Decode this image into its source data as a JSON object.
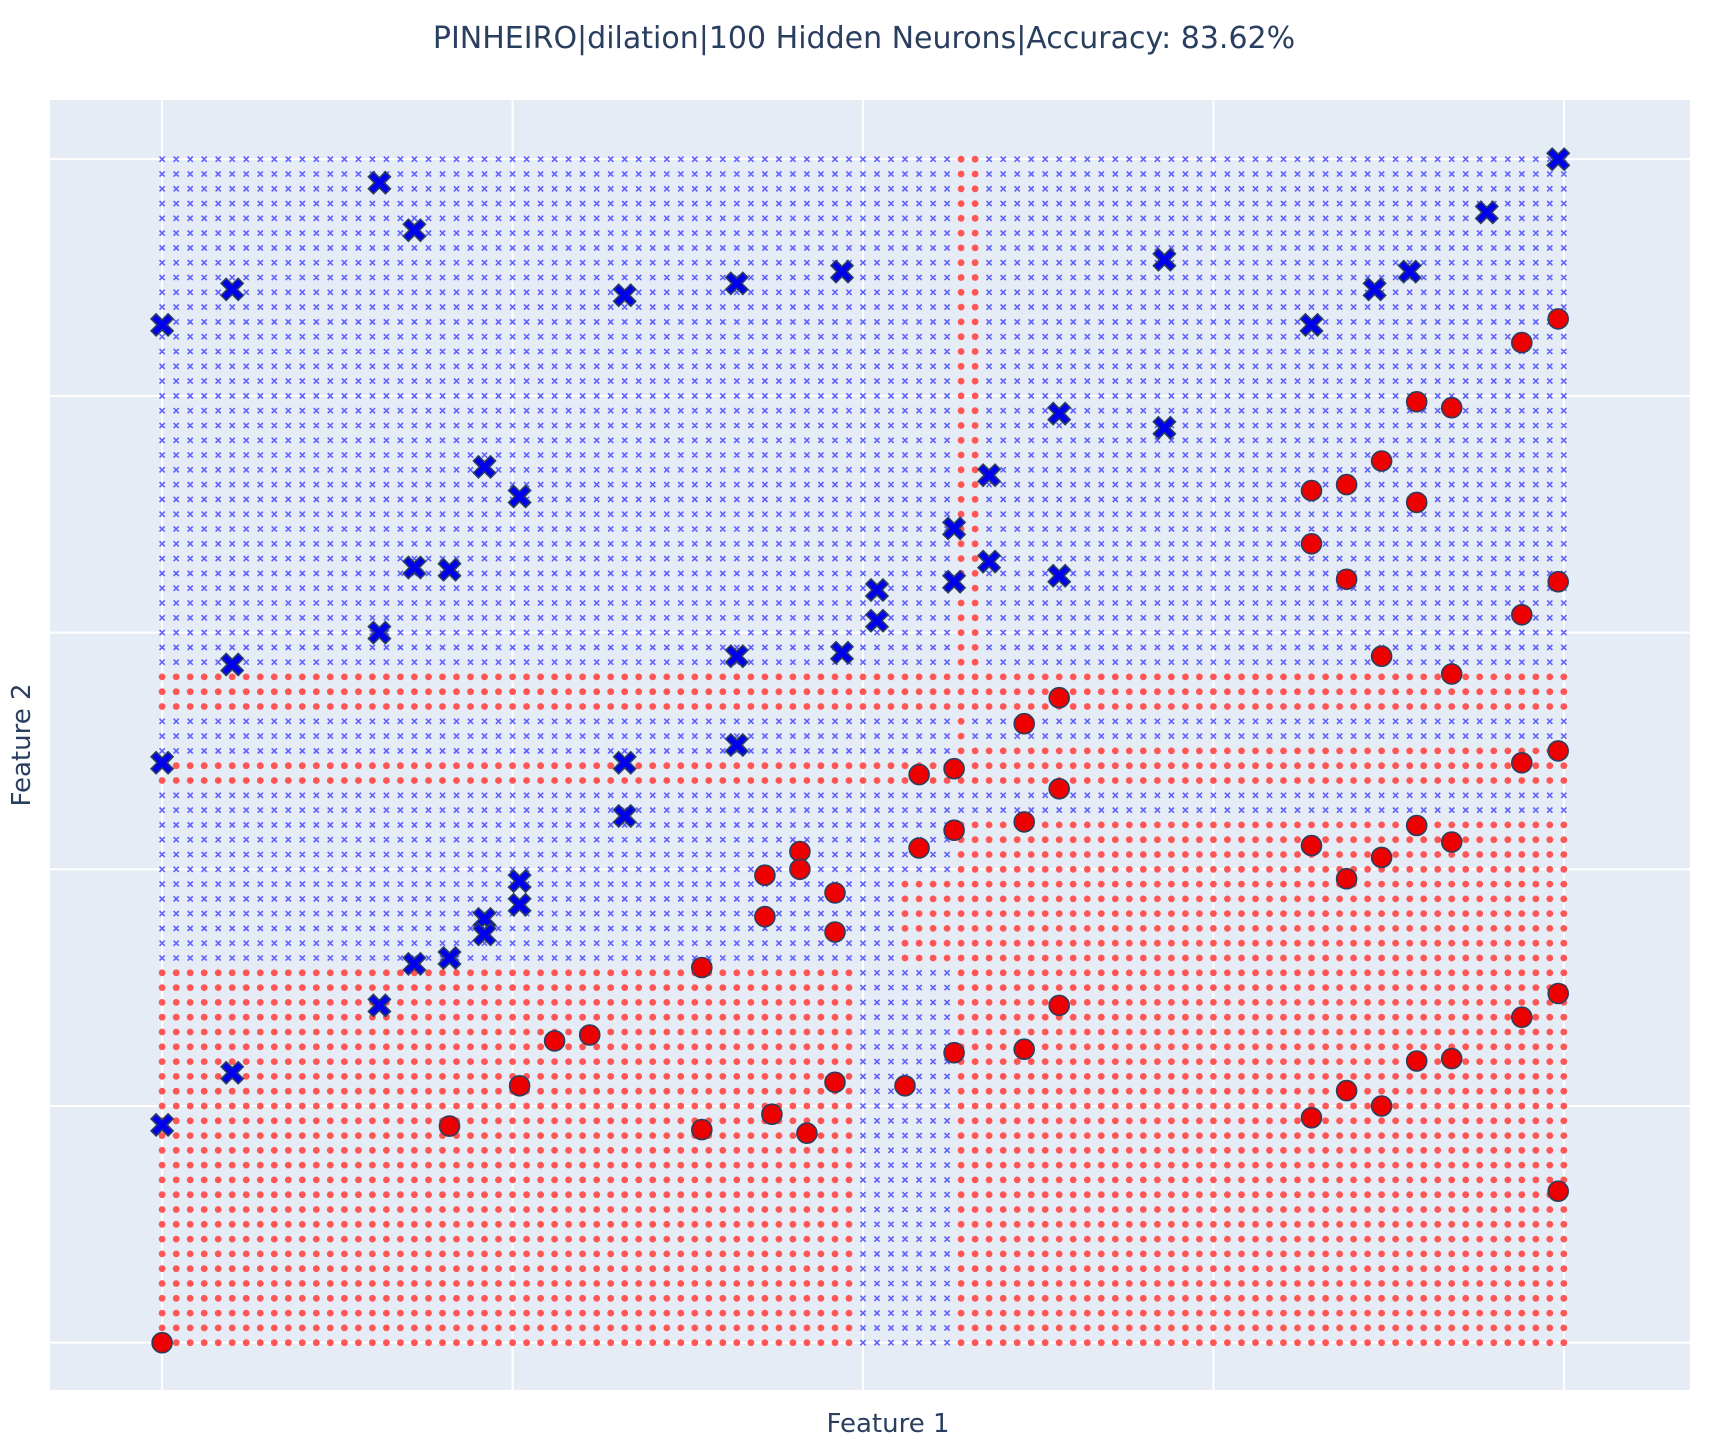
{
  "chart_data": {
    "type": "scatter",
    "title": "PINHEIRO|dilation|100 Hidden Neurons|Accuracy: 83.62%",
    "xlabel": "Feature 1",
    "ylabel": "Feature 2",
    "xlim": [
      -0.08,
      1.09
    ],
    "ylim": [
      -0.04,
      1.05
    ],
    "grid": true,
    "tick_labels_visible": false,
    "colors": {
      "background": "#e5ecf6",
      "grid": "#ffffff",
      "class_x": "#0000ee",
      "class_o": "#ee0000",
      "grid_x": "#6060ff",
      "grid_o": "#ff5555",
      "outline": "#2a3f5f"
    },
    "decision_grid": {
      "x_min": 0,
      "x_max": 1,
      "nx": 101,
      "y_min": 0,
      "y_max": 1,
      "ny": 81,
      "classes": [
        "x",
        "o"
      ],
      "regions": [
        {
          "class": "x",
          "x": [
            0.0,
            1.0
          ],
          "y": [
            0.57,
            1.0
          ]
        },
        {
          "class": "o",
          "x": [
            0.57,
            0.58
          ],
          "y": [
            0.57,
            1.0
          ]
        },
        {
          "class": "o",
          "x": [
            0.0,
            0.52
          ],
          "y": [
            0.54,
            0.57
          ]
        },
        {
          "class": "o",
          "x": [
            0.52,
            1.0
          ],
          "y": [
            0.49,
            0.57
          ]
        },
        {
          "class": "x",
          "x": [
            0.0,
            0.52
          ],
          "y": [
            0.5,
            0.535
          ]
        },
        {
          "class": "x",
          "x": [
            0.52,
            0.565
          ],
          "y": [
            0.5,
            0.535
          ]
        },
        {
          "class": "x",
          "x": [
            0.58,
            1.0
          ],
          "y": [
            0.51,
            0.525
          ]
        },
        {
          "class": "x",
          "x": [
            0.0,
            1.0
          ],
          "y": [
            0.44,
            0.47
          ]
        },
        {
          "class": "x",
          "x": [
            0.0,
            0.52
          ],
          "y": [
            0.32,
            0.44
          ]
        },
        {
          "class": "x",
          "x": [
            0.52,
            0.565
          ],
          "y": [
            0.39,
            0.44
          ]
        },
        {
          "class": "x",
          "x": [
            0.5,
            0.565
          ],
          "y": [
            0.0,
            0.32
          ]
        }
      ]
    },
    "series": [
      {
        "name": "",
        "class": "x",
        "marker": "x",
        "points": [
          [
            0.0,
            0.86
          ],
          [
            0.05,
            0.89
          ],
          [
            0.155,
            0.98
          ],
          [
            0.18,
            0.94
          ],
          [
            0.33,
            0.885
          ],
          [
            0.41,
            0.895
          ],
          [
            0.485,
            0.905
          ],
          [
            0.715,
            0.915
          ],
          [
            0.82,
            0.86
          ],
          [
            0.865,
            0.89
          ],
          [
            0.89,
            0.905
          ],
          [
            0.945,
            0.955
          ],
          [
            0.996,
            1.0
          ],
          [
            0.23,
            0.74
          ],
          [
            0.255,
            0.715
          ],
          [
            0.18,
            0.655
          ],
          [
            0.205,
            0.653
          ],
          [
            0.155,
            0.6
          ],
          [
            0.05,
            0.573
          ],
          [
            0.41,
            0.58
          ],
          [
            0.485,
            0.583
          ],
          [
            0.51,
            0.61
          ],
          [
            0.51,
            0.636
          ],
          [
            0.565,
            0.643
          ],
          [
            0.565,
            0.688
          ],
          [
            0.59,
            0.733
          ],
          [
            0.64,
            0.785
          ],
          [
            0.715,
            0.773
          ],
          [
            0.59,
            0.66
          ],
          [
            0.64,
            0.648
          ],
          [
            0.0,
            0.49
          ],
          [
            0.33,
            0.49
          ],
          [
            0.41,
            0.505
          ],
          [
            0.33,
            0.445
          ],
          [
            0.255,
            0.39
          ],
          [
            0.255,
            0.37
          ],
          [
            0.23,
            0.358
          ],
          [
            0.23,
            0.345
          ],
          [
            0.18,
            0.32
          ],
          [
            0.205,
            0.325
          ],
          [
            0.155,
            0.285
          ],
          [
            0.05,
            0.228
          ],
          [
            0.0,
            0.184
          ]
        ]
      },
      {
        "name": "",
        "class": "o",
        "marker": "circle",
        "points": [
          [
            0.996,
            0.865
          ],
          [
            0.97,
            0.845
          ],
          [
            0.92,
            0.79
          ],
          [
            0.895,
            0.795
          ],
          [
            0.87,
            0.745
          ],
          [
            0.82,
            0.72
          ],
          [
            0.845,
            0.725
          ],
          [
            0.895,
            0.71
          ],
          [
            0.82,
            0.675
          ],
          [
            0.845,
            0.645
          ],
          [
            0.996,
            0.643
          ],
          [
            0.97,
            0.615
          ],
          [
            0.87,
            0.58
          ],
          [
            0.92,
            0.565
          ],
          [
            0.64,
            0.545
          ],
          [
            0.615,
            0.523
          ],
          [
            0.64,
            0.468
          ],
          [
            0.615,
            0.44
          ],
          [
            0.565,
            0.485
          ],
          [
            0.54,
            0.48
          ],
          [
            0.565,
            0.433
          ],
          [
            0.54,
            0.418
          ],
          [
            0.97,
            0.49
          ],
          [
            0.996,
            0.5
          ],
          [
            0.92,
            0.423
          ],
          [
            0.895,
            0.437
          ],
          [
            0.82,
            0.42
          ],
          [
            0.845,
            0.392
          ],
          [
            0.87,
            0.41
          ],
          [
            0.455,
            0.415
          ],
          [
            0.43,
            0.395
          ],
          [
            0.455,
            0.4
          ],
          [
            0.48,
            0.38
          ],
          [
            0.43,
            0.36
          ],
          [
            0.48,
            0.347
          ],
          [
            0.385,
            0.317
          ],
          [
            0.28,
            0.255
          ],
          [
            0.305,
            0.26
          ],
          [
            0.255,
            0.217
          ],
          [
            0.205,
            0.183
          ],
          [
            0.385,
            0.18
          ],
          [
            0.435,
            0.193
          ],
          [
            0.46,
            0.177
          ],
          [
            0.48,
            0.22
          ],
          [
            0.53,
            0.217
          ],
          [
            0.565,
            0.245
          ],
          [
            0.615,
            0.248
          ],
          [
            0.64,
            0.285
          ],
          [
            0.996,
            0.295
          ],
          [
            0.97,
            0.275
          ],
          [
            0.92,
            0.24
          ],
          [
            0.895,
            0.238
          ],
          [
            0.82,
            0.19
          ],
          [
            0.845,
            0.213
          ],
          [
            0.87,
            0.2
          ],
          [
            0.996,
            0.128
          ],
          [
            0.0,
            0.0
          ]
        ]
      }
    ]
  }
}
